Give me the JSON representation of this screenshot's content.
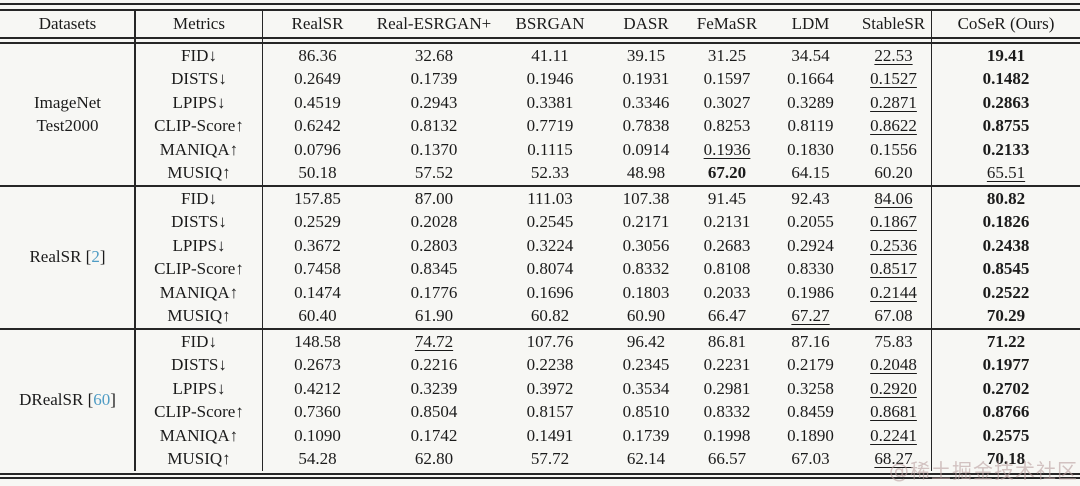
{
  "table": {
    "header": [
      "Datasets",
      "Metrics",
      "RealSR",
      "Real-ESRGAN+",
      "BSRGAN",
      "DASR",
      "FeMaSR",
      "LDM",
      "StableSR",
      "CoSeR (Ours)"
    ],
    "groups": [
      {
        "dataset_lines": [
          "ImageNet",
          "Test2000"
        ],
        "cite": null,
        "rows": [
          {
            "metric": "FID↓",
            "values": [
              "86.36",
              "32.68",
              "41.11",
              "39.15",
              "31.25",
              "34.54",
              "22.53",
              "19.41"
            ],
            "underline": 6,
            "bold": 7
          },
          {
            "metric": "DISTS↓",
            "values": [
              "0.2649",
              "0.1739",
              "0.1946",
              "0.1931",
              "0.1597",
              "0.1664",
              "0.1527",
              "0.1482"
            ],
            "underline": 6,
            "bold": 7
          },
          {
            "metric": "LPIPS↓",
            "values": [
              "0.4519",
              "0.2943",
              "0.3381",
              "0.3346",
              "0.3027",
              "0.3289",
              "0.2871",
              "0.2863"
            ],
            "underline": 6,
            "bold": 7
          },
          {
            "metric": "CLIP-Score↑",
            "values": [
              "0.6242",
              "0.8132",
              "0.7719",
              "0.7838",
              "0.8253",
              "0.8119",
              "0.8622",
              "0.8755"
            ],
            "underline": 6,
            "bold": 7
          },
          {
            "metric": "MANIQA↑",
            "values": [
              "0.0796",
              "0.1370",
              "0.1115",
              "0.0914",
              "0.1936",
              "0.1830",
              "0.1556",
              "0.2133"
            ],
            "underline": 4,
            "bold": 7
          },
          {
            "metric": "MUSIQ↑",
            "values": [
              "50.18",
              "57.52",
              "52.33",
              "48.98",
              "67.20",
              "64.15",
              "60.20",
              "65.51"
            ],
            "underline": 7,
            "bold": 4
          }
        ]
      },
      {
        "dataset_lines": [
          "RealSR"
        ],
        "cite": "2",
        "cite_open": " [",
        "cite_close": "]",
        "rows": [
          {
            "metric": "FID↓",
            "values": [
              "157.85",
              "87.00",
              "111.03",
              "107.38",
              "91.45",
              "92.43",
              "84.06",
              "80.82"
            ],
            "underline": 6,
            "bold": 7
          },
          {
            "metric": "DISTS↓",
            "values": [
              "0.2529",
              "0.2028",
              "0.2545",
              "0.2171",
              "0.2131",
              "0.2055",
              "0.1867",
              "0.1826"
            ],
            "underline": 6,
            "bold": 7
          },
          {
            "metric": "LPIPS↓",
            "values": [
              "0.3672",
              "0.2803",
              "0.3224",
              "0.3056",
              "0.2683",
              "0.2924",
              "0.2536",
              "0.2438"
            ],
            "underline": 6,
            "bold": 7
          },
          {
            "metric": "CLIP-Score↑",
            "values": [
              "0.7458",
              "0.8345",
              "0.8074",
              "0.8332",
              "0.8108",
              "0.8330",
              "0.8517",
              "0.8545"
            ],
            "underline": 6,
            "bold": 7
          },
          {
            "metric": "MANIQA↑",
            "values": [
              "0.1474",
              "0.1776",
              "0.1696",
              "0.1803",
              "0.2033",
              "0.1986",
              "0.2144",
              "0.2522"
            ],
            "underline": 6,
            "bold": 7
          },
          {
            "metric": "MUSIQ↑",
            "values": [
              "60.40",
              "61.90",
              "60.82",
              "60.90",
              "66.47",
              "67.27",
              "67.08",
              "70.29"
            ],
            "underline": 5,
            "bold": 7
          }
        ]
      },
      {
        "dataset_lines": [
          "DRealSR"
        ],
        "cite": "60",
        "cite_open": " [",
        "cite_close": "]",
        "rows": [
          {
            "metric": "FID↓",
            "values": [
              "148.58",
              "74.72",
              "107.76",
              "96.42",
              "86.81",
              "87.16",
              "75.83",
              "71.22"
            ],
            "underline": 1,
            "bold": 7
          },
          {
            "metric": "DISTS↓",
            "values": [
              "0.2673",
              "0.2216",
              "0.2238",
              "0.2345",
              "0.2231",
              "0.2179",
              "0.2048",
              "0.1977"
            ],
            "underline": 6,
            "bold": 7
          },
          {
            "metric": "LPIPS↓",
            "values": [
              "0.4212",
              "0.3239",
              "0.3972",
              "0.3534",
              "0.2981",
              "0.3258",
              "0.2920",
              "0.2702"
            ],
            "underline": 6,
            "bold": 7
          },
          {
            "metric": "CLIP-Score↑",
            "values": [
              "0.7360",
              "0.8504",
              "0.8157",
              "0.8510",
              "0.8332",
              "0.8459",
              "0.8681",
              "0.8766"
            ],
            "underline": 6,
            "bold": 7
          },
          {
            "metric": "MANIQA↑",
            "values": [
              "0.1090",
              "0.1742",
              "0.1491",
              "0.1739",
              "0.1998",
              "0.1890",
              "0.2241",
              "0.2575"
            ],
            "underline": 6,
            "bold": 7
          },
          {
            "metric": "MUSIQ↑",
            "values": [
              "54.28",
              "62.80",
              "57.72",
              "62.14",
              "66.57",
              "67.03",
              "68.27",
              "70.18"
            ],
            "underline": 6,
            "bold": 7
          }
        ]
      }
    ]
  },
  "watermark": "@稀土掘金技术社区",
  "colors": {
    "cite": "#4f9cc4",
    "text": "#1b1b1b",
    "rule": "#262626",
    "watermark": "#b99e9e",
    "background": "#f7f7f4"
  }
}
